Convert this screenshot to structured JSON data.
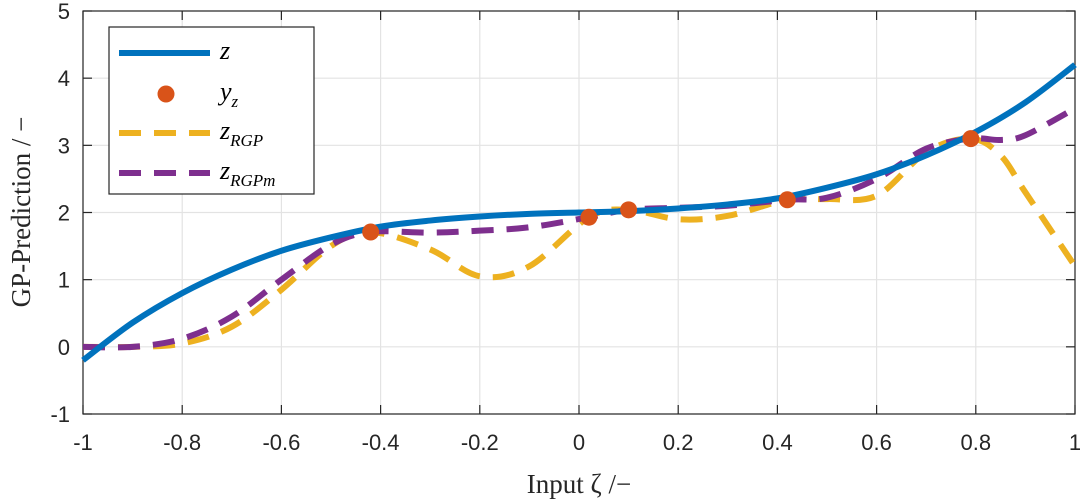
{
  "chart_data": {
    "type": "line",
    "xlabel": "Input ζ /−",
    "ylabel": "GP-Prediction  /  −",
    "xlim": [
      -1,
      1
    ],
    "ylim": [
      -1,
      5
    ],
    "xticks": [
      -1,
      -0.8,
      -0.6,
      -0.4,
      -0.2,
      0,
      0.2,
      0.4,
      0.6,
      0.8,
      1
    ],
    "xtick_labels": [
      "-1",
      "-0.8",
      "-0.6",
      "-0.4",
      "-0.2",
      "0",
      "0.2",
      "0.4",
      "0.6",
      "0.8",
      "1"
    ],
    "yticks": [
      -1,
      0,
      1,
      2,
      3,
      4,
      5
    ],
    "ytick_labels": [
      "-1",
      "0",
      "1",
      "2",
      "3",
      "4",
      "5"
    ],
    "grid": true,
    "legend_position": "top-left",
    "series": [
      {
        "name": "z",
        "style": "solid",
        "color": "#0072BD",
        "x": [
          -1,
          -0.9,
          -0.8,
          -0.7,
          -0.6,
          -0.5,
          -0.4,
          -0.3,
          -0.2,
          -0.1,
          0,
          0.1,
          0.2,
          0.3,
          0.4,
          0.5,
          0.6,
          0.7,
          0.8,
          0.9,
          1
        ],
        "y": [
          -0.2,
          0.36,
          0.8,
          1.15,
          1.43,
          1.63,
          1.79,
          1.88,
          1.94,
          1.98,
          2.0,
          2.02,
          2.06,
          2.12,
          2.21,
          2.37,
          2.57,
          2.85,
          3.2,
          3.64,
          4.2
        ]
      },
      {
        "name": "y",
        "name_sub": "z",
        "style": "markers",
        "color": "#D95319",
        "x": [
          -0.42,
          0.02,
          0.1,
          0.42,
          0.79
        ],
        "y": [
          1.71,
          1.93,
          2.04,
          2.19,
          3.1
        ]
      },
      {
        "name": "z",
        "name_sub": "RGP",
        "style": "dashed",
        "color": "#EDB120",
        "x": [
          -1,
          -0.9,
          -0.8,
          -0.7,
          -0.6,
          -0.5,
          -0.42,
          -0.3,
          -0.2,
          -0.1,
          0.02,
          0.1,
          0.2,
          0.3,
          0.42,
          0.5,
          0.6,
          0.7,
          0.79,
          0.85,
          0.9,
          1
        ],
        "y": [
          0.0,
          0.0,
          0.05,
          0.3,
          0.85,
          1.5,
          1.71,
          1.45,
          1.05,
          1.2,
          1.93,
          2.04,
          1.9,
          1.95,
          2.19,
          2.2,
          2.25,
          2.9,
          3.1,
          2.85,
          2.3,
          1.2
        ]
      },
      {
        "name": "z",
        "name_sub": "RGPm",
        "style": "dashed",
        "color": "#7E2F8E",
        "x": [
          -1,
          -0.9,
          -0.8,
          -0.7,
          -0.6,
          -0.5,
          -0.42,
          -0.3,
          -0.2,
          -0.1,
          0.02,
          0.1,
          0.2,
          0.3,
          0.42,
          0.5,
          0.6,
          0.7,
          0.79,
          0.85,
          0.9,
          1
        ],
        "y": [
          0.0,
          0.0,
          0.12,
          0.45,
          1.0,
          1.52,
          1.71,
          1.7,
          1.73,
          1.78,
          1.93,
          2.04,
          2.07,
          2.1,
          2.19,
          2.22,
          2.5,
          2.95,
          3.1,
          3.08,
          3.15,
          3.55
        ]
      }
    ]
  }
}
